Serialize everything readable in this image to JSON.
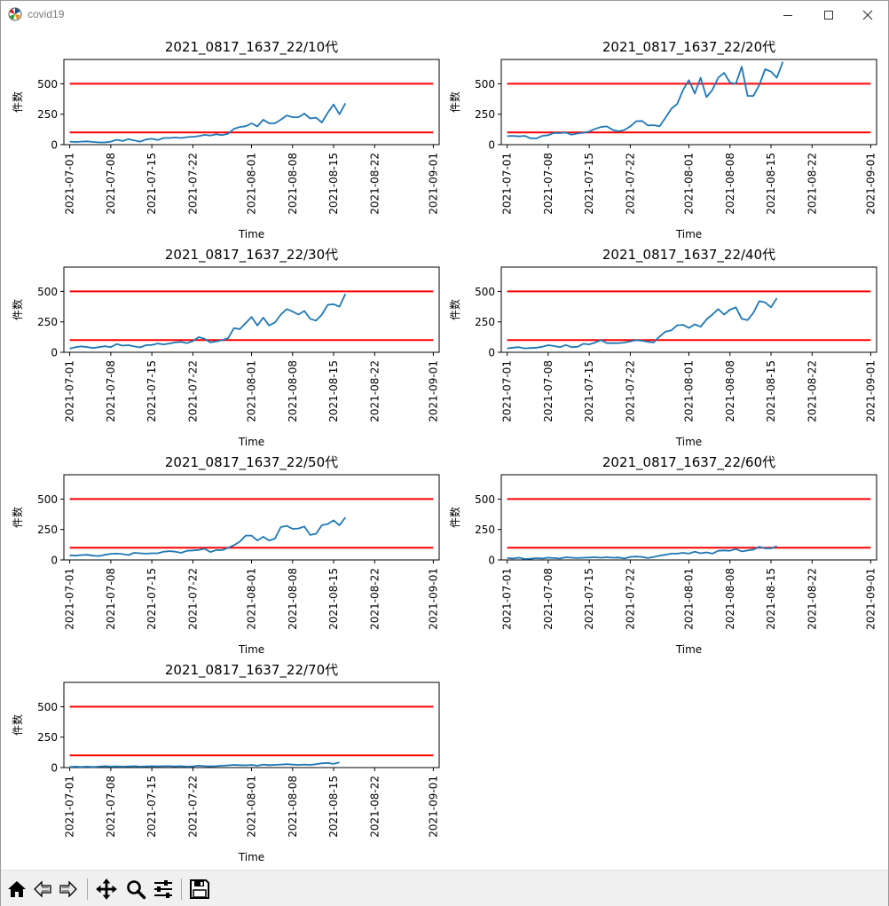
{
  "window": {
    "title": "covid19",
    "app_icon": "matplotlib-icon",
    "controls": [
      "minimize-icon",
      "maximize-icon",
      "close-icon"
    ]
  },
  "toolbar": {
    "buttons": [
      {
        "name": "home-button",
        "icon": "home-icon"
      },
      {
        "name": "back-button",
        "icon": "left-arrow-icon"
      },
      {
        "name": "forward-button",
        "icon": "right-arrow-icon"
      },
      {
        "name": "pan-button",
        "icon": "move-icon"
      },
      {
        "name": "zoom-button",
        "icon": "magnifier-icon"
      },
      {
        "name": "configure-subplots-button",
        "icon": "sliders-icon"
      },
      {
        "name": "save-button",
        "icon": "floppy-disk-icon"
      }
    ]
  },
  "colors": {
    "series": "#1f77b4",
    "threshold": "#ff0000"
  },
  "chart_data": [
    {
      "type": "line",
      "title": "2021_0817_1637_22/10代",
      "xlabel": "Time",
      "ylabel": "件数",
      "xlim": [
        "2021-06-30",
        "2021-09-02"
      ],
      "ylim": [
        0,
        700
      ],
      "xticks": [
        "2021-07-01",
        "2021-07-08",
        "2021-07-15",
        "2021-07-22",
        "2021-08-01",
        "2021-08-08",
        "2021-08-15",
        "2021-08-22",
        "2021-09-01"
      ],
      "yticks": [
        0,
        250,
        500
      ],
      "x_start": "2021-07-01",
      "series": [
        {
          "values": [
            25,
            22,
            25,
            27,
            22,
            18,
            18,
            25,
            40,
            30,
            45,
            35,
            25,
            42,
            48,
            38,
            55,
            55,
            58,
            55,
            62,
            65,
            70,
            80,
            75,
            85,
            78,
            90,
            130,
            145,
            152,
            175,
            150,
            205,
            175,
            175,
            205,
            240,
            225,
            225,
            255,
            215,
            222,
            182,
            262,
            330,
            250,
            340
          ]
        }
      ],
      "thresholds": [
        {
          "y": 500,
          "x_range": [
            "2021-07-01",
            "2021-09-01"
          ]
        },
        {
          "y": 100,
          "x_range": [
            "2021-07-01",
            "2021-09-01"
          ]
        }
      ]
    },
    {
      "type": "line",
      "title": "2021_0817_1637_22/20代",
      "xlabel": "Time",
      "ylabel": "件数",
      "xlim": [
        "2021-06-30",
        "2021-09-02"
      ],
      "ylim": [
        0,
        700
      ],
      "xticks": [
        "2021-07-01",
        "2021-07-08",
        "2021-07-15",
        "2021-07-22",
        "2021-08-01",
        "2021-08-08",
        "2021-08-15",
        "2021-08-22",
        "2021-09-01"
      ],
      "yticks": [
        0,
        250,
        500
      ],
      "x_start": "2021-07-01",
      "series": [
        {
          "values": [
            70,
            72,
            68,
            72,
            52,
            52,
            72,
            78,
            96,
            95,
            100,
            82,
            92,
            98,
            108,
            130,
            145,
            150,
            120,
            110,
            120,
            150,
            192,
            195,
            158,
            160,
            152,
            222,
            295,
            335,
            450,
            530,
            420,
            550,
            390,
            450,
            550,
            590,
            510,
            500,
            640,
            400,
            400,
            490,
            620,
            600,
            550,
            680
          ]
        }
      ],
      "thresholds": [
        {
          "y": 500,
          "x_range": [
            "2021-07-01",
            "2021-09-01"
          ]
        },
        {
          "y": 100,
          "x_range": [
            "2021-07-01",
            "2021-09-01"
          ]
        }
      ]
    },
    {
      "type": "line",
      "title": "2021_0817_1637_22/30代",
      "xlabel": "Time",
      "ylabel": "件数",
      "xlim": [
        "2021-06-30",
        "2021-09-02"
      ],
      "ylim": [
        0,
        700
      ],
      "xticks": [
        "2021-07-01",
        "2021-07-08",
        "2021-07-15",
        "2021-07-22",
        "2021-08-01",
        "2021-08-08",
        "2021-08-15",
        "2021-08-22",
        "2021-09-01"
      ],
      "yticks": [
        0,
        250,
        500
      ],
      "x_start": "2021-07-01",
      "series": [
        {
          "values": [
            30,
            42,
            48,
            42,
            35,
            42,
            50,
            42,
            68,
            55,
            58,
            48,
            40,
            58,
            60,
            72,
            65,
            72,
            82,
            85,
            75,
            92,
            125,
            110,
            82,
            90,
            100,
            115,
            198,
            190,
            240,
            290,
            220,
            285,
            220,
            245,
            310,
            355,
            335,
            310,
            340,
            275,
            260,
            310,
            390,
            395,
            375,
            480
          ]
        }
      ],
      "thresholds": [
        {
          "y": 500,
          "x_range": [
            "2021-07-01",
            "2021-09-01"
          ]
        },
        {
          "y": 100,
          "x_range": [
            "2021-07-01",
            "2021-09-01"
          ]
        }
      ]
    },
    {
      "type": "line",
      "title": "2021_0817_1637_22/40代",
      "xlabel": "Time",
      "ylabel": "件数",
      "xlim": [
        "2021-06-30",
        "2021-09-02"
      ],
      "ylim": [
        0,
        700
      ],
      "xticks": [
        "2021-07-01",
        "2021-07-08",
        "2021-07-15",
        "2021-07-22",
        "2021-08-01",
        "2021-08-08",
        "2021-08-15",
        "2021-08-22",
        "2021-09-01"
      ],
      "yticks": [
        0,
        250,
        500
      ],
      "x_start": "2021-07-01",
      "series": [
        {
          "values": [
            32,
            38,
            42,
            32,
            35,
            38,
            45,
            58,
            52,
            42,
            60,
            42,
            45,
            70,
            65,
            80,
            100,
            75,
            75,
            75,
            80,
            90,
            100,
            95,
            85,
            82,
            130,
            170,
            180,
            222,
            225,
            200,
            230,
            210,
            270,
            310,
            355,
            310,
            350,
            370,
            275,
            265,
            325,
            420,
            410,
            370,
            445
          ]
        }
      ],
      "thresholds": [
        {
          "y": 500,
          "x_range": [
            "2021-07-01",
            "2021-09-01"
          ]
        },
        {
          "y": 100,
          "x_range": [
            "2021-07-01",
            "2021-09-01"
          ]
        }
      ]
    },
    {
      "type": "line",
      "title": "2021_0817_1637_22/50代",
      "xlabel": "Time",
      "ylabel": "件数",
      "xlim": [
        "2021-06-30",
        "2021-09-02"
      ],
      "ylim": [
        0,
        700
      ],
      "xticks": [
        "2021-07-01",
        "2021-07-08",
        "2021-07-15",
        "2021-07-22",
        "2021-08-01",
        "2021-08-08",
        "2021-08-15",
        "2021-08-22",
        "2021-09-01"
      ],
      "yticks": [
        0,
        250,
        500
      ],
      "x_start": "2021-07-01",
      "series": [
        {
          "values": [
            38,
            35,
            40,
            42,
            35,
            32,
            42,
            50,
            52,
            48,
            40,
            58,
            55,
            52,
            55,
            55,
            68,
            72,
            68,
            58,
            75,
            78,
            82,
            92,
            65,
            82,
            80,
            100,
            120,
            150,
            200,
            200,
            160,
            190,
            160,
            175,
            270,
            280,
            255,
            258,
            275,
            205,
            215,
            285,
            295,
            325,
            285,
            350
          ]
        }
      ],
      "thresholds": [
        {
          "y": 500,
          "x_range": [
            "2021-07-01",
            "2021-09-01"
          ]
        },
        {
          "y": 100,
          "x_range": [
            "2021-07-01",
            "2021-09-01"
          ]
        }
      ]
    },
    {
      "type": "line",
      "title": "2021_0817_1637_22/60代",
      "xlabel": "Time",
      "ylabel": "件数",
      "xlim": [
        "2021-06-30",
        "2021-09-02"
      ],
      "ylim": [
        0,
        700
      ],
      "xticks": [
        "2021-07-01",
        "2021-07-08",
        "2021-07-15",
        "2021-07-22",
        "2021-08-01",
        "2021-08-08",
        "2021-08-15",
        "2021-08-22",
        "2021-09-01"
      ],
      "yticks": [
        0,
        250,
        500
      ],
      "x_start": "2021-07-01",
      "series": [
        {
          "values": [
            15,
            12,
            18,
            8,
            10,
            15,
            12,
            18,
            15,
            12,
            22,
            18,
            15,
            18,
            20,
            22,
            18,
            22,
            18,
            20,
            12,
            25,
            28,
            25,
            15,
            25,
            35,
            42,
            52,
            52,
            58,
            52,
            68,
            55,
            62,
            52,
            75,
            78,
            75,
            90,
            70,
            78,
            85,
            108,
            95,
            95,
            112
          ]
        }
      ],
      "thresholds": [
        {
          "y": 500,
          "x_range": [
            "2021-07-01",
            "2021-09-01"
          ]
        },
        {
          "y": 100,
          "x_range": [
            "2021-07-01",
            "2021-09-01"
          ]
        }
      ]
    },
    {
      "type": "line",
      "title": "2021_0817_1637_22/70代",
      "xlabel": "Time",
      "ylabel": "件数",
      "xlim": [
        "2021-06-30",
        "2021-09-02"
      ],
      "ylim": [
        0,
        700
      ],
      "xticks": [
        "2021-07-01",
        "2021-07-08",
        "2021-07-15",
        "2021-07-22",
        "2021-08-01",
        "2021-08-08",
        "2021-08-15",
        "2021-08-22",
        "2021-09-01"
      ],
      "yticks": [
        0,
        250,
        500
      ],
      "x_start": "2021-07-01",
      "series": [
        {
          "values": [
            5,
            8,
            5,
            8,
            5,
            8,
            12,
            8,
            10,
            8,
            10,
            12,
            8,
            10,
            12,
            10,
            12,
            12,
            10,
            12,
            8,
            10,
            15,
            12,
            10,
            12,
            15,
            18,
            22,
            20,
            18,
            22,
            15,
            25,
            20,
            22,
            25,
            28,
            25,
            22,
            25,
            22,
            28,
            35,
            38,
            30,
            42
          ]
        }
      ],
      "thresholds": [
        {
          "y": 500,
          "x_range": [
            "2021-07-01",
            "2021-09-01"
          ]
        },
        {
          "y": 100,
          "x_range": [
            "2021-07-01",
            "2021-09-01"
          ]
        }
      ]
    }
  ]
}
